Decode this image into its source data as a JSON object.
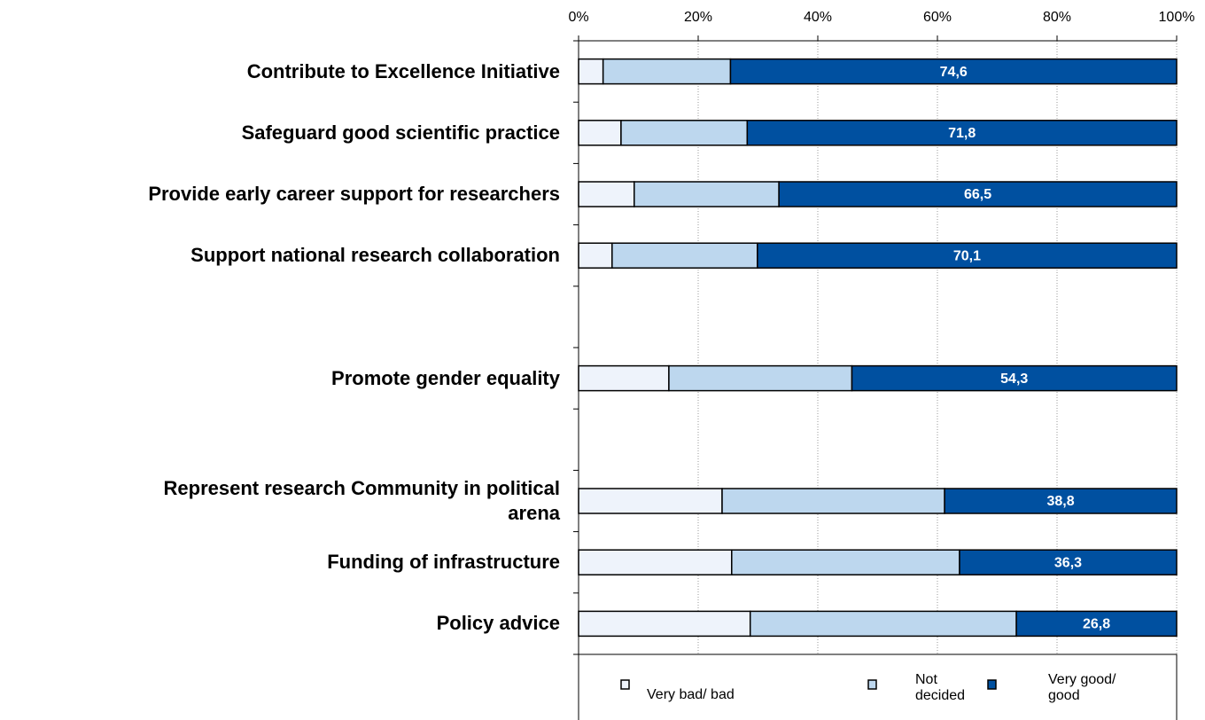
{
  "chart_data": {
    "type": "bar",
    "orientation": "horizontal",
    "stacked": true,
    "categories": [
      "Contribute to Excellence Initiative",
      "Safeguard good scientific practice",
      "Provide early career support for researchers",
      "Support national research collaboration",
      null,
      "Promote gender equality",
      null,
      "Represent research Community in political arena",
      "Funding of infrastructure",
      "Policy advice"
    ],
    "series": [
      {
        "name": "Very bad/ bad",
        "color": "#eef3fb",
        "values": [
          4.1,
          7.1,
          9.3,
          5.6,
          null,
          15.1,
          null,
          24.0,
          25.6,
          28.7
        ]
      },
      {
        "name": "Not decided",
        "color": "#bdd7ee",
        "values": [
          21.3,
          21.1,
          24.2,
          24.3,
          null,
          30.6,
          null,
          37.2,
          38.1,
          44.5
        ]
      },
      {
        "name": "Very good/ good",
        "color": "#0050a0",
        "values": [
          74.6,
          71.8,
          66.5,
          70.1,
          null,
          54.3,
          null,
          38.8,
          36.3,
          26.8
        ],
        "value_labels": [
          "74,6",
          "71,8",
          "66,5",
          "70,1",
          null,
          "54,3",
          null,
          "38,8",
          "36,3",
          "26,8"
        ]
      }
    ],
    "xlim": [
      0,
      100
    ],
    "xticks": [
      {
        "value": 0,
        "label": "0%"
      },
      {
        "value": 20,
        "label": "20%"
      },
      {
        "value": 40,
        "label": "40%"
      },
      {
        "value": 60,
        "label": "60%"
      },
      {
        "value": 80,
        "label": "80%"
      },
      {
        "value": 100,
        "label": "100%"
      }
    ],
    "grid": true,
    "legend": "bottom"
  }
}
